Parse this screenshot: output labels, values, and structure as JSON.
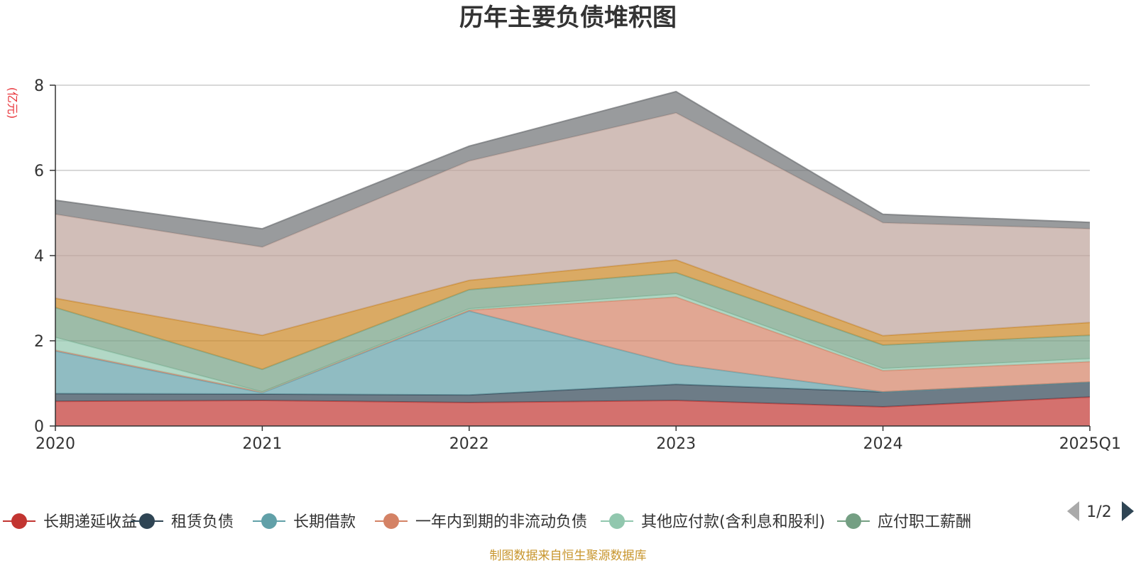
{
  "chart_data": {
    "type": "area",
    "stacked": true,
    "title": "历年主要负债堆积图",
    "ylabel": "(亿元)",
    "xlabel": "",
    "ylim": [
      0,
      8
    ],
    "yticks": [
      0,
      2,
      4,
      6,
      8
    ],
    "grid": true,
    "legend_position": "bottom",
    "categories": [
      "2020",
      "2021",
      "2022",
      "2023",
      "2024",
      "2025Q1"
    ],
    "series": [
      {
        "name": "长期递延收益",
        "color": "#c23531",
        "values": [
          0.58,
          0.6,
          0.55,
          0.6,
          0.45,
          0.68
        ]
      },
      {
        "name": "租赁负债",
        "color": "#2f4554",
        "values": [
          0.18,
          0.15,
          0.18,
          0.38,
          0.35,
          0.35
        ]
      },
      {
        "name": "长期借款",
        "color": "#61a0a8",
        "values": [
          1.0,
          0.03,
          1.97,
          0.47,
          0.0,
          0.0
        ]
      },
      {
        "name": "一年内到期的非流动负债",
        "color": "#d48265",
        "values": [
          0.02,
          0.02,
          0.02,
          1.58,
          0.5,
          0.48
        ]
      },
      {
        "name": "其他应付款(含利息和股利)",
        "color": "#91c7ae",
        "values": [
          0.3,
          0.0,
          0.03,
          0.07,
          0.05,
          0.07
        ]
      },
      {
        "name": "应付职工薪酬",
        "color": "#749f83",
        "values": [
          0.7,
          0.53,
          0.45,
          0.5,
          0.55,
          0.55
        ]
      },
      {
        "name": "",
        "color": "#ca8622",
        "values": [
          0.22,
          0.8,
          0.22,
          0.3,
          0.22,
          0.3
        ]
      },
      {
        "name": "",
        "color": "#bda29a",
        "values": [
          1.97,
          2.07,
          2.8,
          3.45,
          2.65,
          2.2
        ]
      },
      {
        "name": "",
        "color": "#6e7074",
        "values": [
          0.33,
          0.43,
          0.35,
          0.5,
          0.2,
          0.15
        ]
      }
    ]
  },
  "legend": {
    "visible_items": [
      "长期递延收益",
      "租赁负债",
      "长期借款",
      "一年内到期的非流动负债",
      "其他应付款(含利息和股利)",
      "应付职工薪酬"
    ],
    "page": "1/2",
    "prev_icon": "triangle-left-icon",
    "next_icon": "triangle-right-icon"
  },
  "footer": {
    "source": "制图数据来自恒生聚源数据库"
  }
}
